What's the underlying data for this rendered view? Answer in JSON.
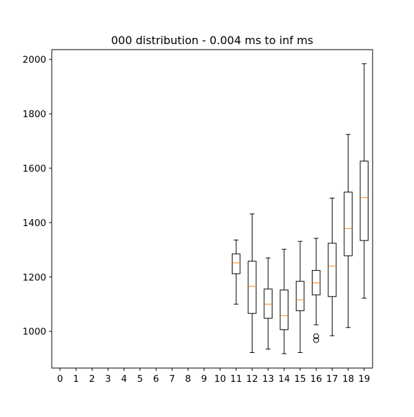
{
  "chart_data": {
    "type": "boxplot",
    "title": "000 distribution - 0.004 ms to inf ms",
    "xlabel": "",
    "ylabel": "",
    "categories": [
      "0",
      "1",
      "2",
      "3",
      "4",
      "5",
      "6",
      "7",
      "8",
      "9",
      "10",
      "11",
      "12",
      "13",
      "14",
      "15",
      "16",
      "17",
      "18",
      "19"
    ],
    "yticks": [
      1000,
      1200,
      1400,
      1600,
      1800,
      2000
    ],
    "ylim": [
      865,
      2036
    ],
    "grid": false,
    "colors": {
      "box": "#000000",
      "median": "#ff7f0e"
    },
    "boxes": [
      {
        "category": "11",
        "whisker_low": 1100,
        "q1": 1212,
        "median": 1252,
        "q3": 1285,
        "whisker_high": 1336,
        "outliers": []
      },
      {
        "category": "12",
        "whisker_low": 922,
        "q1": 1066,
        "median": 1166,
        "q3": 1258,
        "whisker_high": 1432,
        "outliers": []
      },
      {
        "category": "13",
        "whisker_low": 935,
        "q1": 1048,
        "median": 1100,
        "q3": 1156,
        "whisker_high": 1270,
        "outliers": []
      },
      {
        "category": "14",
        "whisker_low": 918,
        "q1": 1006,
        "median": 1058,
        "q3": 1152,
        "whisker_high": 1302,
        "outliers": []
      },
      {
        "category": "15",
        "whisker_low": 922,
        "q1": 1076,
        "median": 1116,
        "q3": 1184,
        "whisker_high": 1331,
        "outliers": []
      },
      {
        "category": "16",
        "whisker_low": 1024,
        "q1": 1134,
        "median": 1178,
        "q3": 1224,
        "whisker_high": 1342,
        "outliers": [
          982,
          968
        ]
      },
      {
        "category": "17",
        "whisker_low": 984,
        "q1": 1128,
        "median": 1240,
        "q3": 1324,
        "whisker_high": 1490,
        "outliers": []
      },
      {
        "category": "18",
        "whisker_low": 1014,
        "q1": 1278,
        "median": 1378,
        "q3": 1512,
        "whisker_high": 1724,
        "outliers": []
      },
      {
        "category": "19",
        "whisker_low": 1122,
        "q1": 1334,
        "median": 1492,
        "q3": 1626,
        "whisker_high": 1984,
        "outliers": []
      }
    ]
  }
}
